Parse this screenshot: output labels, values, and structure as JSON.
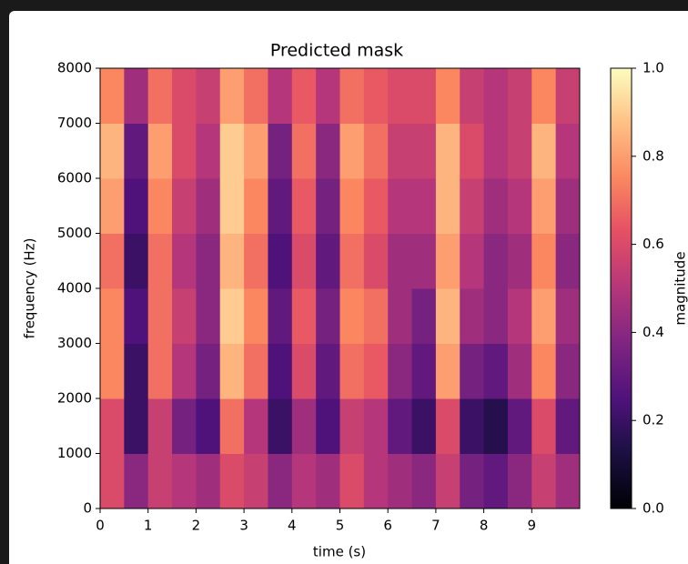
{
  "chart_data": {
    "type": "heatmap",
    "title": "Predicted mask",
    "xlabel": "time (s)",
    "ylabel": "frequency (Hz)",
    "xlim": [
      0,
      10
    ],
    "xticks": [
      0,
      1,
      2,
      3,
      4,
      5,
      6,
      7,
      8,
      9
    ],
    "ylim": [
      0,
      8000
    ],
    "yticks": [
      0,
      1000,
      2000,
      3000,
      4000,
      5000,
      6000,
      7000,
      8000
    ],
    "colormap": "magma",
    "x": [
      0.25,
      0.75,
      1.25,
      1.75,
      2.25,
      2.75,
      3.25,
      3.75,
      4.25,
      4.75,
      5.25,
      5.75,
      6.25,
      6.75,
      7.25,
      7.75,
      8.25,
      8.75,
      9.25,
      9.75
    ],
    "y": [
      500,
      1500,
      2500,
      3500,
      4500,
      5500,
      6500,
      7500
    ],
    "z": [
      [
        0.6,
        0.4,
        0.55,
        0.5,
        0.45,
        0.6,
        0.55,
        0.4,
        0.5,
        0.45,
        0.6,
        0.5,
        0.45,
        0.4,
        0.55,
        0.35,
        0.3,
        0.4,
        0.55,
        0.45
      ],
      [
        0.6,
        0.2,
        0.55,
        0.35,
        0.25,
        0.7,
        0.5,
        0.2,
        0.45,
        0.25,
        0.55,
        0.5,
        0.3,
        0.2,
        0.6,
        0.2,
        0.15,
        0.3,
        0.6,
        0.3
      ],
      [
        0.75,
        0.2,
        0.7,
        0.5,
        0.35,
        0.85,
        0.7,
        0.25,
        0.6,
        0.3,
        0.7,
        0.65,
        0.4,
        0.3,
        0.8,
        0.35,
        0.3,
        0.45,
        0.75,
        0.4
      ],
      [
        0.75,
        0.25,
        0.7,
        0.55,
        0.4,
        0.9,
        0.75,
        0.3,
        0.65,
        0.35,
        0.75,
        0.7,
        0.45,
        0.35,
        0.85,
        0.45,
        0.4,
        0.5,
        0.8,
        0.45
      ],
      [
        0.7,
        0.2,
        0.7,
        0.5,
        0.4,
        0.85,
        0.7,
        0.25,
        0.6,
        0.3,
        0.7,
        0.6,
        0.45,
        0.45,
        0.8,
        0.5,
        0.4,
        0.45,
        0.75,
        0.4
      ],
      [
        0.8,
        0.25,
        0.75,
        0.55,
        0.45,
        0.9,
        0.75,
        0.3,
        0.65,
        0.35,
        0.75,
        0.65,
        0.5,
        0.5,
        0.85,
        0.55,
        0.45,
        0.5,
        0.8,
        0.45
      ],
      [
        0.85,
        0.3,
        0.8,
        0.6,
        0.5,
        0.9,
        0.8,
        0.35,
        0.7,
        0.4,
        0.8,
        0.7,
        0.55,
        0.55,
        0.85,
        0.6,
        0.5,
        0.55,
        0.85,
        0.5
      ],
      [
        0.75,
        0.45,
        0.7,
        0.6,
        0.55,
        0.8,
        0.7,
        0.5,
        0.65,
        0.5,
        0.7,
        0.65,
        0.6,
        0.6,
        0.75,
        0.55,
        0.5,
        0.55,
        0.75,
        0.55
      ]
    ],
    "colorbar": {
      "label": "magnitude",
      "lim": [
        0,
        1
      ],
      "ticks": [
        {
          "value": 0,
          "label": "0.0"
        },
        0.2,
        0.4,
        0.6,
        0.8,
        {
          "value": 1,
          "label": "1.0"
        }
      ]
    }
  }
}
